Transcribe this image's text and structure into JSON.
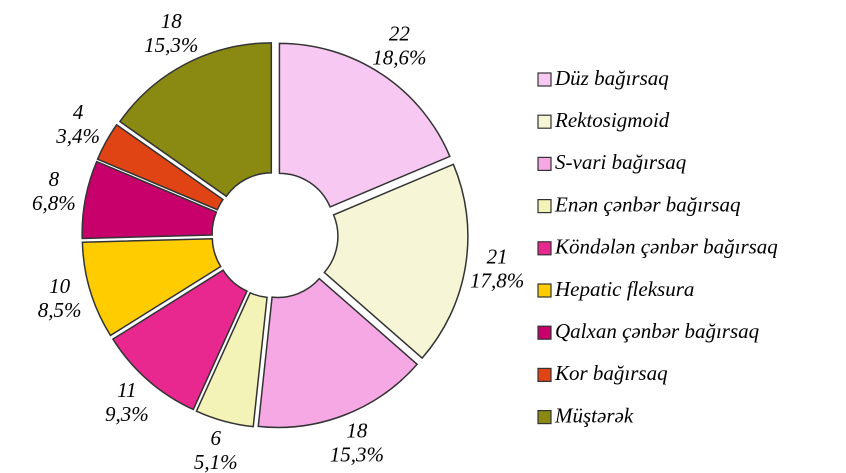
{
  "chart_data": {
    "type": "donut",
    "categories": [
      "Düz bağırsaq",
      "Rektosigmoid",
      "S-vari bağırsaq",
      "Enən çənbər bağırsaq",
      "Köndələn çənbər bağırsaq",
      "Hepatic fleksura",
      "Qalxan çənbər bağırsaq",
      "Kor bağırsaq",
      "Müştərək"
    ],
    "values": [
      22,
      21,
      18,
      6,
      11,
      10,
      8,
      4,
      18
    ],
    "percent_labels": [
      "18,6%",
      "17,8%",
      "15,3%",
      "5,1%",
      "9,3%",
      "8,5%",
      "6,8%",
      "3,4%",
      "15,3%"
    ],
    "colors": [
      "#f7c8f1",
      "#f6f6d6",
      "#f5a8e3",
      "#f3f3b8",
      "#e8288f",
      "#ffcc00",
      "#c8006c",
      "#e04414",
      "#8a8a12"
    ],
    "legend": "right"
  }
}
